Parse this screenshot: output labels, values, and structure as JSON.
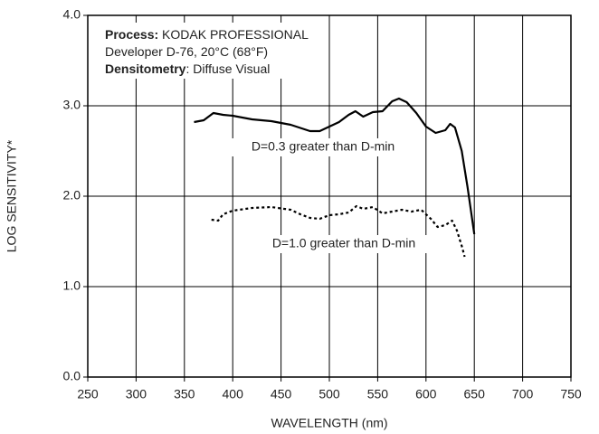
{
  "chart_data": {
    "type": "line",
    "annotation": [
      [
        {
          "text": "Process:",
          "bold": true
        },
        {
          "text": " KODAK PROFESSIONAL",
          "bold": false
        }
      ],
      [
        {
          "text": "Developer D-76, 20°C (68°F)",
          "bold": false
        }
      ],
      [
        {
          "text": "Densitometry",
          "bold": true
        },
        {
          "text": ": Diffuse Visual",
          "bold": false
        }
      ]
    ],
    "x_label": "WAVELENGTH (nm)",
    "y_label": "LOG SENSITIVITY*",
    "xlim": [
      250,
      750
    ],
    "xticks": [
      250,
      300,
      350,
      400,
      450,
      500,
      550,
      600,
      650,
      700,
      750
    ],
    "ylim": [
      0,
      4
    ],
    "yticks": [
      {
        "value": 0,
        "label": "0.0"
      },
      {
        "value": 1,
        "label": "1.0"
      },
      {
        "value": 2,
        "label": "2.0"
      },
      {
        "value": 3,
        "label": "3.0"
      },
      {
        "value": 4,
        "label": "4.0"
      }
    ],
    "grid": true,
    "series": [
      {
        "name": "D=0.3 greater than D-min",
        "color": "#000000",
        "dash": "solid",
        "x": [
          360,
          370,
          380,
          390,
          400,
          420,
          440,
          460,
          480,
          490,
          500,
          510,
          520,
          527,
          535,
          545,
          555,
          565,
          572,
          580,
          590,
          600,
          610,
          620,
          625,
          630,
          637,
          643,
          650
        ],
        "values": [
          2.82,
          2.84,
          2.92,
          2.9,
          2.89,
          2.85,
          2.83,
          2.79,
          2.72,
          2.72,
          2.77,
          2.82,
          2.9,
          2.94,
          2.88,
          2.93,
          2.94,
          3.05,
          3.08,
          3.04,
          2.92,
          2.77,
          2.7,
          2.73,
          2.8,
          2.76,
          2.5,
          2.1,
          1.58
        ]
      },
      {
        "name": "D=1.0 greater than D-min",
        "color": "#000000",
        "dash": "dotted",
        "x": [
          378,
          385,
          390,
          400,
          420,
          440,
          460,
          470,
          480,
          490,
          500,
          510,
          520,
          528,
          535,
          545,
          555,
          565,
          575,
          585,
          595,
          605,
          612,
          620,
          627,
          632,
          637,
          640
        ],
        "values": [
          1.74,
          1.73,
          1.8,
          1.84,
          1.87,
          1.88,
          1.85,
          1.8,
          1.76,
          1.75,
          1.79,
          1.8,
          1.82,
          1.89,
          1.86,
          1.88,
          1.81,
          1.83,
          1.85,
          1.83,
          1.85,
          1.75,
          1.66,
          1.68,
          1.73,
          1.62,
          1.45,
          1.33
        ]
      }
    ]
  }
}
